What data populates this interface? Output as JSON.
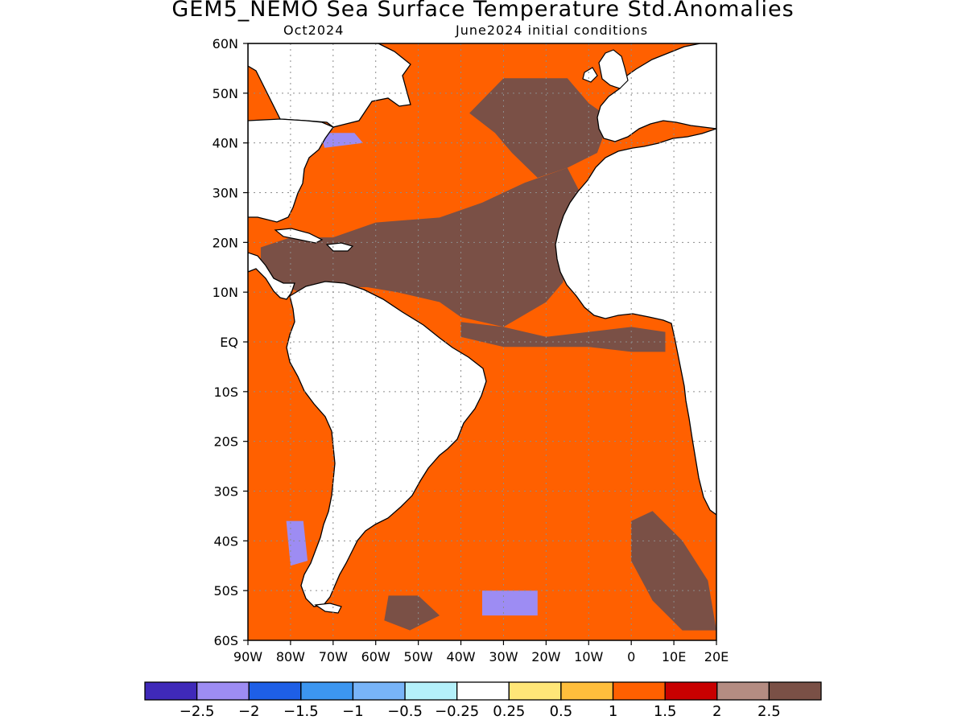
{
  "header": {
    "title": "GEM5_NEMO Sea Surface Temperature Std.Anomalies",
    "valid_month": "Oct2024",
    "init": "June2024 initial conditions"
  },
  "map": {
    "lon_range": [
      -90,
      20
    ],
    "lat_range": [
      -60,
      60
    ],
    "lat_ticks": [
      {
        "value": 60,
        "label": "60N"
      },
      {
        "value": 50,
        "label": "50N"
      },
      {
        "value": 40,
        "label": "40N"
      },
      {
        "value": 30,
        "label": "30N"
      },
      {
        "value": 20,
        "label": "20N"
      },
      {
        "value": 10,
        "label": "10N"
      },
      {
        "value": 0,
        "label": "EQ"
      },
      {
        "value": -10,
        "label": "10S"
      },
      {
        "value": -20,
        "label": "20S"
      },
      {
        "value": -30,
        "label": "30S"
      },
      {
        "value": -40,
        "label": "40S"
      },
      {
        "value": -50,
        "label": "50S"
      },
      {
        "value": -60,
        "label": "60S"
      }
    ],
    "lon_ticks": [
      {
        "value": -90,
        "label": "90W"
      },
      {
        "value": -80,
        "label": "80W"
      },
      {
        "value": -70,
        "label": "70W"
      },
      {
        "value": -60,
        "label": "60W"
      },
      {
        "value": -50,
        "label": "50W"
      },
      {
        "value": -40,
        "label": "40W"
      },
      {
        "value": -30,
        "label": "30W"
      },
      {
        "value": -20,
        "label": "20W"
      },
      {
        "value": -10,
        "label": "10W"
      },
      {
        "value": 0,
        "label": "0"
      },
      {
        "value": 10,
        "label": "10E"
      },
      {
        "value": 20,
        "label": "20E"
      }
    ],
    "grid": true
  },
  "colorbar": {
    "colors": [
      "#3f29b9",
      "#9d8cf3",
      "#1e5fe6",
      "#3c96f0",
      "#78b4f8",
      "#b4f0fa",
      "#ffffff",
      "#ffe678",
      "#ffbe3c",
      "#ff6000",
      "#c80000",
      "#b48c82",
      "#7a5046"
    ],
    "labels": [
      "−2.5",
      "−2",
      "−1.5",
      "−1",
      "−0.5",
      "−0.25",
      "0.25",
      "0.5",
      "1",
      "1.5",
      "2",
      "2.5"
    ]
  },
  "regions": [
    {
      "name": "tropical-north-atlantic-warm-core",
      "category": 12,
      "points": [
        [
          -87,
          19
        ],
        [
          -80,
          21
        ],
        [
          -70,
          21
        ],
        [
          -60,
          24
        ],
        [
          -45,
          25
        ],
        [
          -35,
          28
        ],
        [
          -25,
          32
        ],
        [
          -15,
          35
        ],
        [
          -12,
          30
        ],
        [
          -15,
          20
        ],
        [
          -16,
          12
        ],
        [
          -20,
          8
        ],
        [
          -30,
          3
        ],
        [
          -40,
          5
        ],
        [
          -45,
          8
        ],
        [
          -55,
          10
        ],
        [
          -62,
          11
        ],
        [
          -70,
          11
        ],
        [
          -78,
          10
        ],
        [
          -83,
          12
        ],
        [
          -87,
          15
        ]
      ]
    },
    {
      "name": "mid-atlantic-warm-tongue",
      "category": 12,
      "points": [
        [
          -38,
          46
        ],
        [
          -30,
          53
        ],
        [
          -15,
          53
        ],
        [
          -10,
          48
        ],
        [
          -5,
          45
        ],
        [
          -8,
          38
        ],
        [
          -15,
          35
        ],
        [
          -22,
          33
        ],
        [
          -28,
          38
        ],
        [
          -32,
          42
        ]
      ]
    },
    {
      "name": "equatorial-warm-band",
      "category": 12,
      "points": [
        [
          -40,
          4
        ],
        [
          -30,
          3
        ],
        [
          -20,
          1
        ],
        [
          -10,
          2
        ],
        [
          0,
          3
        ],
        [
          8,
          2
        ],
        [
          8,
          -2
        ],
        [
          0,
          -2
        ],
        [
          -10,
          -1
        ],
        [
          -20,
          -1
        ],
        [
          -30,
          -1
        ],
        [
          -40,
          1
        ]
      ]
    },
    {
      "name": "benguela-warm-patch",
      "category": 12,
      "points": [
        [
          0,
          -36
        ],
        [
          5,
          -34
        ],
        [
          12,
          -40
        ],
        [
          18,
          -48
        ],
        [
          20,
          -58
        ],
        [
          12,
          -58
        ],
        [
          5,
          -52
        ],
        [
          0,
          -44
        ]
      ]
    },
    {
      "name": "south-brazil-warm-patch",
      "category": 12,
      "points": [
        [
          -57,
          -51
        ],
        [
          -50,
          -51
        ],
        [
          -45,
          -55
        ],
        [
          -52,
          -58
        ],
        [
          -58,
          -56
        ]
      ]
    },
    {
      "name": "gulf-stream-cool-patch",
      "category": 1,
      "points": [
        [
          -73,
          42
        ],
        [
          -65,
          42
        ],
        [
          -63,
          40
        ],
        [
          -72,
          39
        ]
      ]
    },
    {
      "name": "southwest-atlantic-cool-patch",
      "category": 1,
      "points": [
        [
          -35,
          -50
        ],
        [
          -22,
          -50
        ],
        [
          -22,
          -55
        ],
        [
          -35,
          -55
        ]
      ]
    },
    {
      "name": "south-pacific-cool-patch",
      "category": 1,
      "points": [
        [
          -81,
          -36
        ],
        [
          -77,
          -36
        ],
        [
          -76,
          -44
        ],
        [
          -80,
          -45
        ]
      ]
    }
  ]
}
